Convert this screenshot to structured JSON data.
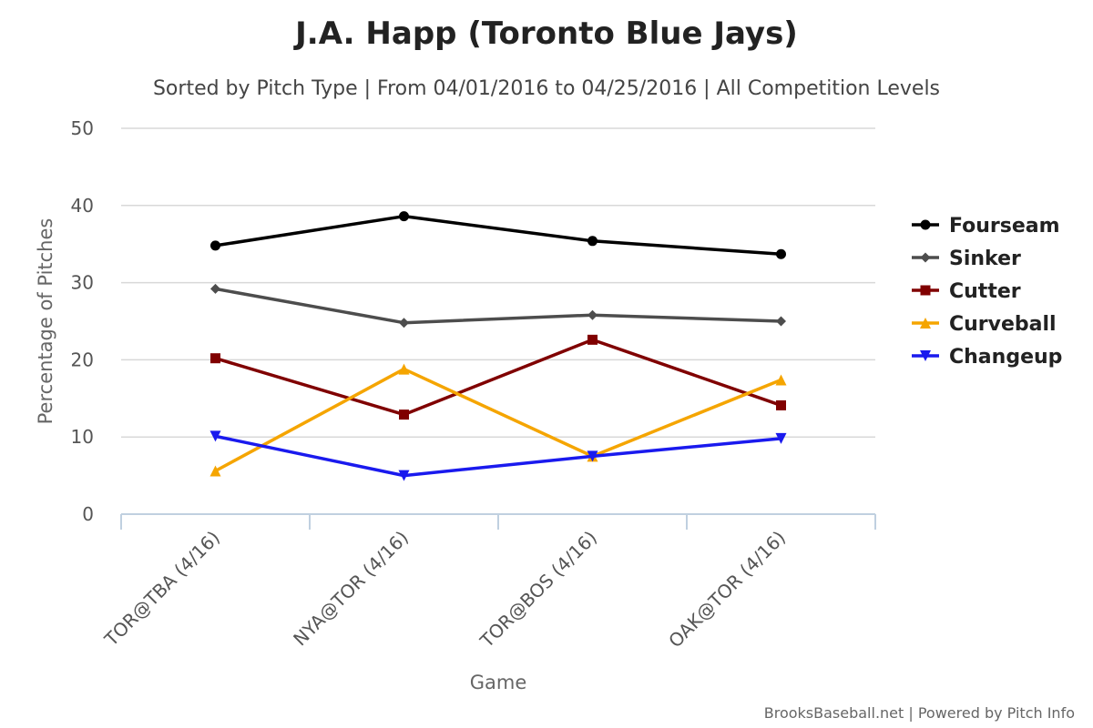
{
  "chart_data": {
    "type": "line",
    "title": "J.A. Happ (Toronto Blue Jays)",
    "subtitle": "Sorted by Pitch Type | From 04/01/2016 to 04/25/2016 | All Competition Levels",
    "xlabel": "Game",
    "ylabel": "Percentage of Pitches",
    "categories": [
      "TOR@TBA (4/16)",
      "NYA@TOR (4/16)",
      "TOR@BOS (4/16)",
      "OAK@TOR (4/16)"
    ],
    "ylim": [
      0,
      50
    ],
    "yticks": [
      0,
      10,
      20,
      30,
      40,
      50
    ],
    "grid": true,
    "legend_position": "right",
    "series": [
      {
        "name": "Fourseam",
        "color": "#000000",
        "marker": "circle",
        "values": [
          34.8,
          38.6,
          35.4,
          33.7
        ]
      },
      {
        "name": "Sinker",
        "color": "#4d4d4d",
        "marker": "diamond",
        "values": [
          29.2,
          24.8,
          25.8,
          25.0
        ]
      },
      {
        "name": "Cutter",
        "color": "#800000",
        "marker": "square",
        "values": [
          20.2,
          12.9,
          22.6,
          14.1
        ]
      },
      {
        "name": "Curveball",
        "color": "#f5a500",
        "marker": "triangle-up",
        "values": [
          5.6,
          18.8,
          7.5,
          17.4
        ]
      },
      {
        "name": "Changeup",
        "color": "#1a1aee",
        "marker": "triangle-down",
        "values": [
          10.1,
          5.0,
          7.5,
          9.8
        ]
      }
    ],
    "credits": "BrooksBaseball.net | Powered by Pitch Info"
  }
}
